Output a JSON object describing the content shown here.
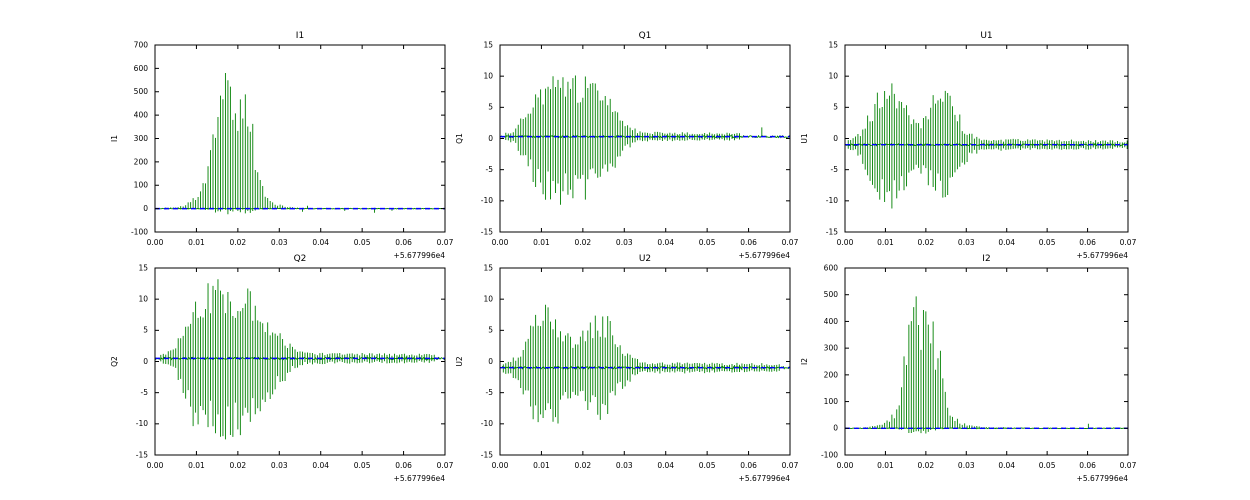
{
  "figure": {
    "background": "#ffffff",
    "signal_color": "#008000",
    "baseline_color": "#0000ff",
    "axis_color": "#000000",
    "x_offset_label": "+5.677996e4"
  },
  "chart_data": [
    {
      "type": "line",
      "title": "I1",
      "ylabel": "I1",
      "xlabel": "",
      "xlim": [
        0,
        0.07
      ],
      "xticks": [
        0.0,
        0.01,
        0.02,
        0.03,
        0.04,
        0.05,
        0.06,
        0.07
      ],
      "x_offset": "+5.677996e4",
      "ylim": [
        -100,
        700
      ],
      "yticks": [
        -100,
        0,
        100,
        200,
        300,
        400,
        500,
        600,
        700
      ],
      "grid": false,
      "legend": null,
      "baseline": 0,
      "polarity": "positive",
      "noise": 4,
      "envelope": [
        [
          0,
          3
        ],
        [
          0.004,
          6
        ],
        [
          0.007,
          15
        ],
        [
          0.009,
          40
        ],
        [
          0.011,
          90
        ],
        [
          0.013,
          200
        ],
        [
          0.0145,
          430
        ],
        [
          0.016,
          620
        ],
        [
          0.022,
          620
        ],
        [
          0.0235,
          430
        ],
        [
          0.025,
          150
        ],
        [
          0.027,
          60
        ],
        [
          0.029,
          25
        ],
        [
          0.032,
          8
        ],
        [
          0.036,
          4
        ],
        [
          0.07,
          3
        ]
      ]
    },
    {
      "type": "line",
      "title": "Q1",
      "ylabel": "Q1",
      "xlabel": "",
      "xlim": [
        0,
        0.07
      ],
      "xticks": [
        0.0,
        0.01,
        0.02,
        0.03,
        0.04,
        0.05,
        0.06,
        0.07
      ],
      "x_offset": "+5.677996e4",
      "ylim": [
        -15,
        15
      ],
      "yticks": [
        -15,
        -10,
        -5,
        0,
        5,
        10,
        15
      ],
      "grid": false,
      "legend": null,
      "baseline": 0.3,
      "polarity": "bipolar",
      "noise": 0.5,
      "envelope": [
        [
          0,
          0.4
        ],
        [
          0.003,
          1
        ],
        [
          0.005,
          3
        ],
        [
          0.007,
          6.5
        ],
        [
          0.009,
          9
        ],
        [
          0.011,
          10.5
        ],
        [
          0.013,
          11
        ],
        [
          0.016,
          11
        ],
        [
          0.019,
          10.5
        ],
        [
          0.022,
          10
        ],
        [
          0.025,
          8
        ],
        [
          0.027,
          6
        ],
        [
          0.029,
          3.5
        ],
        [
          0.031,
          2
        ],
        [
          0.034,
          0.8
        ],
        [
          0.07,
          0.5
        ]
      ]
    },
    {
      "type": "line",
      "title": "U1",
      "ylabel": "U1",
      "xlabel": "",
      "xlim": [
        0,
        0.07
      ],
      "xticks": [
        0.0,
        0.01,
        0.02,
        0.03,
        0.04,
        0.05,
        0.06,
        0.07
      ],
      "x_offset": "+5.677996e4",
      "ylim": [
        -15,
        15
      ],
      "yticks": [
        -15,
        -10,
        -5,
        0,
        5,
        10,
        15
      ],
      "grid": false,
      "legend": null,
      "baseline": -1,
      "polarity": "bipolar",
      "noise": 0.5,
      "envelope": [
        [
          0,
          0.5
        ],
        [
          0.003,
          1.5
        ],
        [
          0.005,
          4
        ],
        [
          0.007,
          7
        ],
        [
          0.009,
          10
        ],
        [
          0.012,
          10.5
        ],
        [
          0.014,
          9
        ],
        [
          0.016,
          5.5
        ],
        [
          0.018,
          4
        ],
        [
          0.02,
          6.5
        ],
        [
          0.022,
          9
        ],
        [
          0.025,
          9.5
        ],
        [
          0.027,
          7
        ],
        [
          0.029,
          4
        ],
        [
          0.031,
          2
        ],
        [
          0.034,
          1
        ],
        [
          0.07,
          0.7
        ]
      ]
    },
    {
      "type": "line",
      "title": "Q2",
      "ylabel": "Q2",
      "xlabel": "",
      "xlim": [
        0,
        0.07
      ],
      "xticks": [
        0.0,
        0.01,
        0.02,
        0.03,
        0.04,
        0.05,
        0.06,
        0.07
      ],
      "x_offset": "+5.677996e4",
      "ylim": [
        -15,
        15
      ],
      "yticks": [
        -15,
        -10,
        -5,
        0,
        5,
        10,
        15
      ],
      "grid": false,
      "legend": null,
      "baseline": 0.5,
      "polarity": "bipolar",
      "noise": 0.6,
      "envelope": [
        [
          0,
          0.5
        ],
        [
          0.004,
          1.5
        ],
        [
          0.006,
          4
        ],
        [
          0.008,
          8
        ],
        [
          0.01,
          13
        ],
        [
          0.013,
          12
        ],
        [
          0.016,
          13.5
        ],
        [
          0.019,
          13
        ],
        [
          0.022,
          12
        ],
        [
          0.025,
          10
        ],
        [
          0.027,
          8
        ],
        [
          0.03,
          5
        ],
        [
          0.033,
          2.5
        ],
        [
          0.036,
          1
        ],
        [
          0.07,
          0.7
        ]
      ]
    },
    {
      "type": "line",
      "title": "U2",
      "ylabel": "U2",
      "xlabel": "",
      "xlim": [
        0,
        0.07
      ],
      "xticks": [
        0.0,
        0.01,
        0.02,
        0.03,
        0.04,
        0.05,
        0.06,
        0.07
      ],
      "x_offset": "+5.677996e4",
      "ylim": [
        -15,
        15
      ],
      "yticks": [
        -15,
        -10,
        -5,
        0,
        5,
        10,
        15
      ],
      "grid": false,
      "legend": null,
      "baseline": -1,
      "polarity": "bipolar",
      "noise": 0.6,
      "envelope": [
        [
          0,
          0.5
        ],
        [
          0.004,
          2
        ],
        [
          0.006,
          5
        ],
        [
          0.008,
          9
        ],
        [
          0.011,
          11
        ],
        [
          0.013,
          10
        ],
        [
          0.015,
          8
        ],
        [
          0.017,
          5.5
        ],
        [
          0.019,
          5
        ],
        [
          0.021,
          7
        ],
        [
          0.024,
          9.5
        ],
        [
          0.026,
          9
        ],
        [
          0.028,
          5
        ],
        [
          0.031,
          2.5
        ],
        [
          0.034,
          1
        ],
        [
          0.07,
          0.7
        ]
      ]
    },
    {
      "type": "line",
      "title": "I2",
      "ylabel": "I2",
      "xlabel": "",
      "xlim": [
        0,
        0.07
      ],
      "xticks": [
        0.0,
        0.01,
        0.02,
        0.03,
        0.04,
        0.05,
        0.06,
        0.07
      ],
      "x_offset": "+5.677996e4",
      "ylim": [
        -100,
        600
      ],
      "yticks": [
        -100,
        0,
        100,
        200,
        300,
        400,
        500,
        600
      ],
      "grid": false,
      "legend": null,
      "baseline": 0,
      "polarity": "positive",
      "noise": 4,
      "envelope": [
        [
          0,
          3
        ],
        [
          0.005,
          5
        ],
        [
          0.008,
          12
        ],
        [
          0.011,
          35
        ],
        [
          0.013,
          90
        ],
        [
          0.0145,
          300
        ],
        [
          0.016,
          545
        ],
        [
          0.021,
          545
        ],
        [
          0.023,
          380
        ],
        [
          0.025,
          120
        ],
        [
          0.027,
          45
        ],
        [
          0.03,
          15
        ],
        [
          0.034,
          5
        ],
        [
          0.07,
          4
        ]
      ]
    }
  ]
}
